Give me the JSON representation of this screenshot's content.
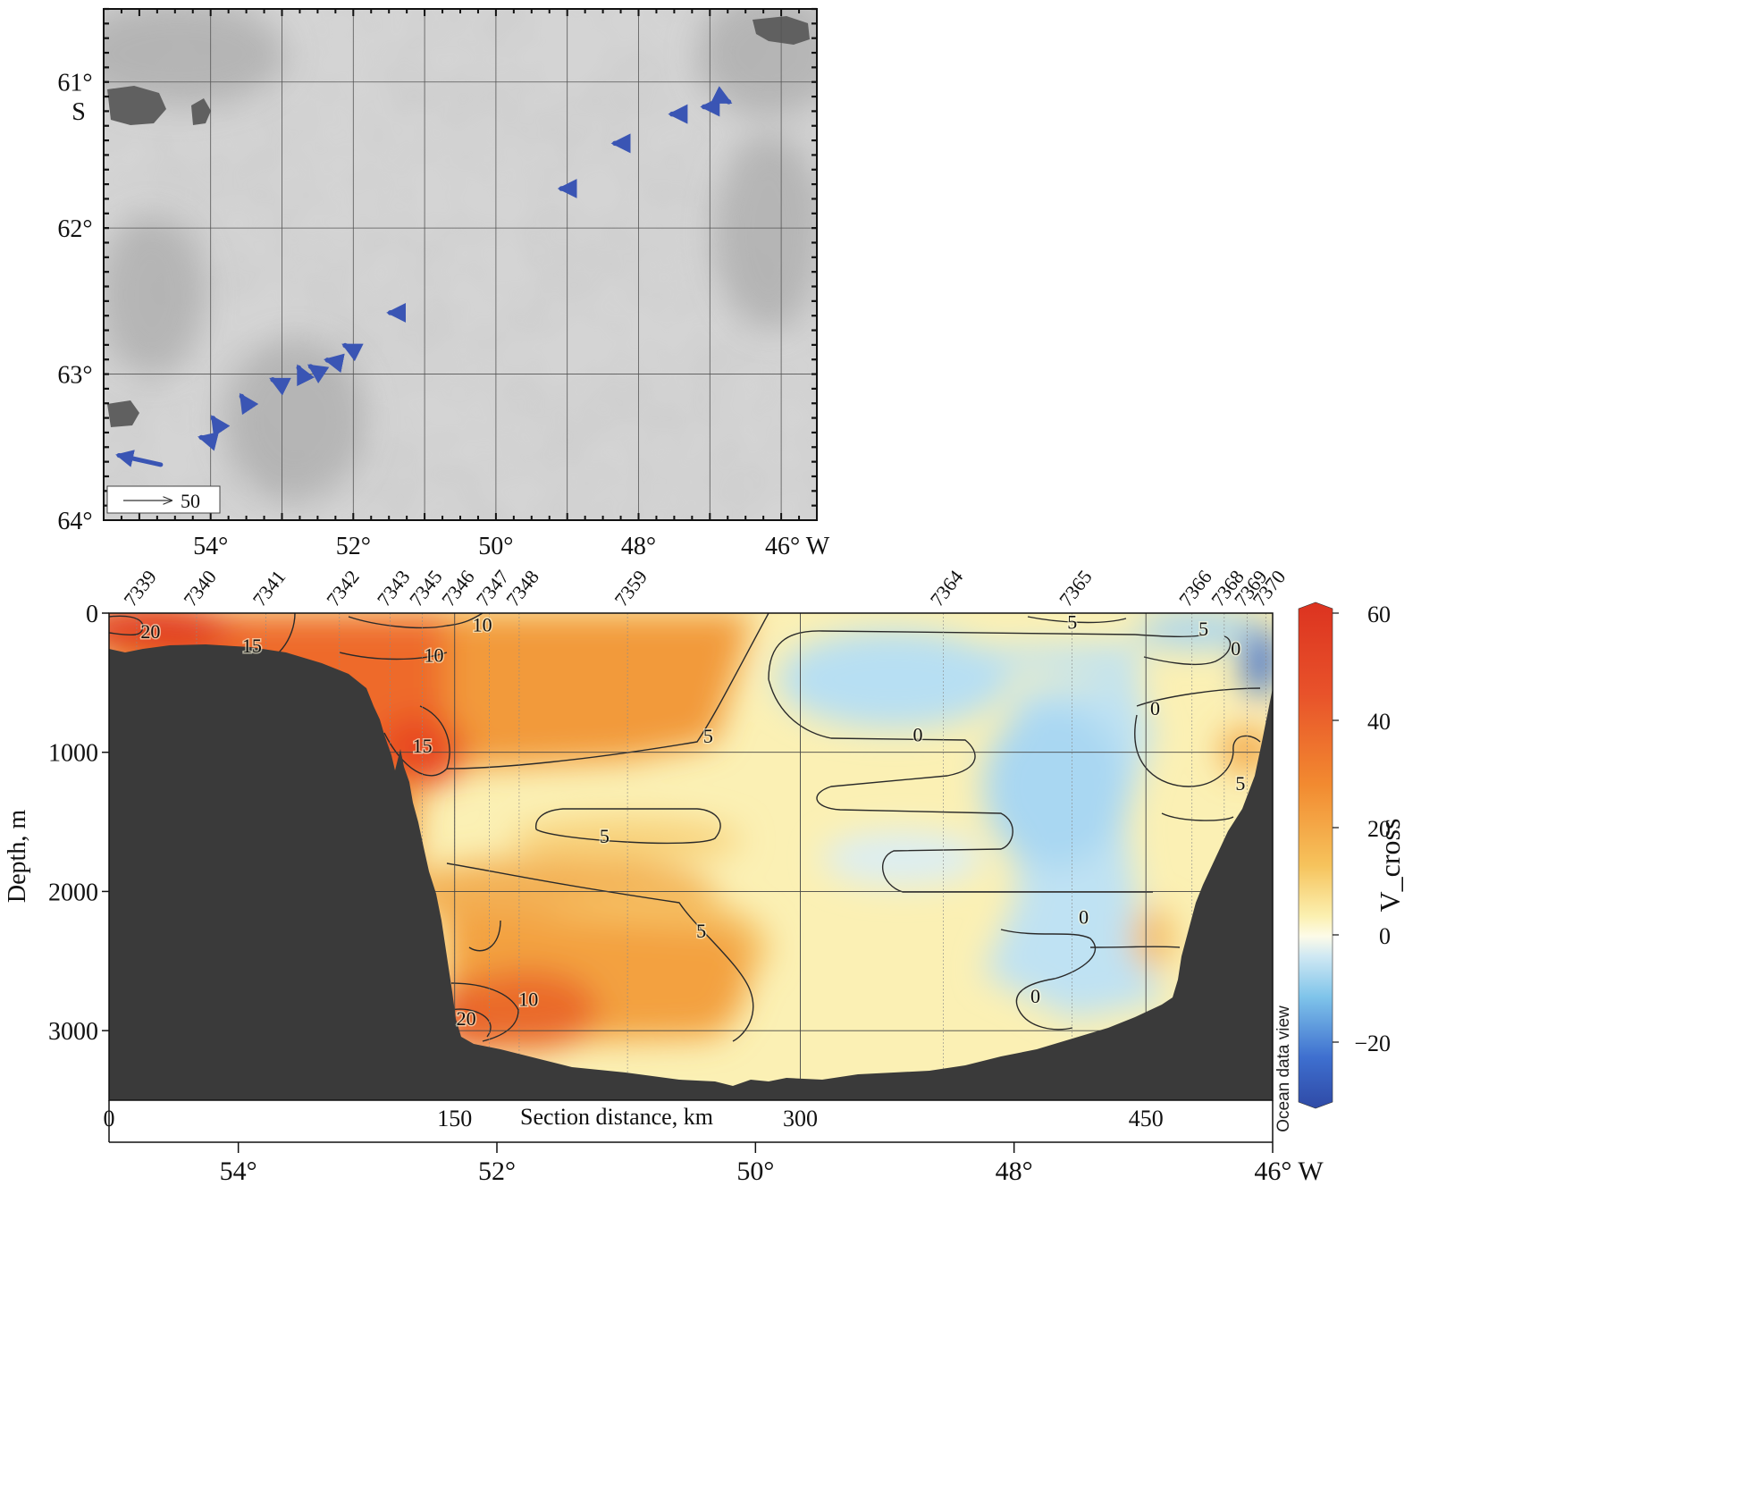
{
  "map": {
    "lat_ticks": [
      "61°",
      "62°",
      "63°",
      "64°"
    ],
    "lat_values": [
      61,
      62,
      63,
      64
    ],
    "lat_hemisphere": "S",
    "lon_ticks": [
      "54°",
      "52°",
      "50°",
      "48°",
      "46° W"
    ],
    "lon_values": [
      54,
      52,
      50,
      48,
      46
    ],
    "lon_range": [
      55.5,
      45.5
    ],
    "lat_range": [
      60.5,
      64.0
    ],
    "scale_label": "50",
    "vector_color": "#3a55b4",
    "background_color": "#d4d4d4",
    "land_color": "#606060",
    "vectors": [
      {
        "lon": 54.7,
        "lat": 63.62,
        "u": -18,
        "v": 4
      },
      {
        "lon": 54.0,
        "lat": 63.45,
        "u": -4,
        "v": 1
      },
      {
        "lon": 53.9,
        "lat": 63.35,
        "u": -2,
        "v": 3
      },
      {
        "lon": 53.5,
        "lat": 63.2,
        "u": -2,
        "v": 3
      },
      {
        "lon": 53.0,
        "lat": 63.07,
        "u": -4,
        "v": 2
      },
      {
        "lon": 52.7,
        "lat": 63.02,
        "u": -2,
        "v": 4
      },
      {
        "lon": 52.5,
        "lat": 62.98,
        "u": -3,
        "v": 2
      },
      {
        "lon": 52.2,
        "lat": 62.92,
        "u": -5,
        "v": 1
      },
      {
        "lon": 52.05,
        "lat": 62.82,
        "u": -2,
        "v": 1
      },
      {
        "lon": 51.45,
        "lat": 62.58,
        "u": -1,
        "v": 0
      },
      {
        "lon": 49.05,
        "lat": 61.73,
        "u": -1,
        "v": 0
      },
      {
        "lon": 48.3,
        "lat": 61.42,
        "u": -1,
        "v": 0
      },
      {
        "lon": 47.5,
        "lat": 61.22,
        "u": -1,
        "v": 0
      },
      {
        "lon": 47.05,
        "lat": 61.17,
        "u": -1,
        "v": 0
      },
      {
        "lon": 46.8,
        "lat": 61.12,
        "u": 2,
        "v": -1
      }
    ]
  },
  "chart_data": {
    "type": "heatmap",
    "xlabel": "Section distance, km",
    "ylabel": "Depth, m",
    "colorbar_label": "V_cross",
    "watermark": "Ocean data view",
    "x_ticks": [
      "0",
      "150",
      "300",
      "450"
    ],
    "x_tick_values": [
      0,
      150,
      300,
      450
    ],
    "xlim": [
      0,
      505
    ],
    "y_ticks": [
      "0",
      "1000",
      "2000",
      "3000"
    ],
    "y_tick_values": [
      0,
      1000,
      2000,
      3000
    ],
    "ylim": [
      3500,
      0
    ],
    "colorbar_ticks": [
      "60",
      "40",
      "20",
      "0",
      "−20"
    ],
    "colorbar_tick_values": [
      60,
      40,
      20,
      0,
      -20
    ],
    "colorbar_range": [
      -30,
      60
    ],
    "lon_ticks": [
      "54°",
      "52°",
      "50°",
      "48°",
      "46° W"
    ],
    "lon_tick_values": [
      54,
      52,
      50,
      48,
      46
    ],
    "lon_range": [
      55,
      46
    ],
    "stations": [
      {
        "label": "7339",
        "km": 12
      },
      {
        "label": "7340",
        "km": 38
      },
      {
        "label": "7341",
        "km": 68
      },
      {
        "label": "7342",
        "km": 100
      },
      {
        "label": "7343",
        "km": 122
      },
      {
        "label": "7345",
        "km": 136
      },
      {
        "label": "7346",
        "km": 150
      },
      {
        "label": "7347",
        "km": 165
      },
      {
        "label": "7348",
        "km": 178
      },
      {
        "label": "7359",
        "km": 225
      },
      {
        "label": "7364",
        "km": 362
      },
      {
        "label": "7365",
        "km": 418
      },
      {
        "label": "7366",
        "km": 470
      },
      {
        "label": "7368",
        "km": 484
      },
      {
        "label": "7369",
        "km": 494
      },
      {
        "label": "7370",
        "km": 502
      }
    ],
    "contour_labels": [
      {
        "text": "20",
        "km": 18,
        "depth": 130
      },
      {
        "text": "15",
        "km": 62,
        "depth": 230
      },
      {
        "text": "10",
        "km": 162,
        "depth": 80
      },
      {
        "text": "10",
        "km": 141,
        "depth": 300
      },
      {
        "text": "15",
        "km": 136,
        "depth": 950
      },
      {
        "text": "5",
        "km": 260,
        "depth": 880
      },
      {
        "text": "0",
        "km": 351,
        "depth": 870
      },
      {
        "text": "5",
        "km": 215,
        "depth": 1600
      },
      {
        "text": "5",
        "km": 257,
        "depth": 2280
      },
      {
        "text": "10",
        "km": 182,
        "depth": 2770
      },
      {
        "text": "20",
        "km": 155,
        "depth": 2910
      },
      {
        "text": "0",
        "km": 423,
        "depth": 2180
      },
      {
        "text": "0",
        "km": 402,
        "depth": 2750
      },
      {
        "text": "5",
        "km": 418,
        "depth": 60
      },
      {
        "text": "5",
        "km": 475,
        "depth": 110
      },
      {
        "text": "0",
        "km": 489,
        "depth": 250
      },
      {
        "text": "0",
        "km": 454,
        "depth": 680
      },
      {
        "text": "5",
        "km": 491,
        "depth": 1220
      }
    ]
  }
}
